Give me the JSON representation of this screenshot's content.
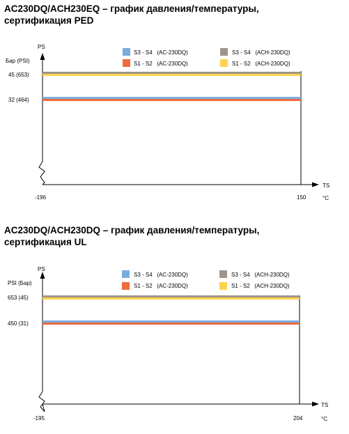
{
  "charts": [
    {
      "title_line1": "AC230DQ/ACH230EQ – график давления/температуры,",
      "title_line2": "сертификация PED",
      "y_axis_title": "PS",
      "y_unit_label": "Бар (PSI)",
      "x_axis_title": "TS",
      "x_unit_label": "°C",
      "x_min_label": "-196",
      "x_max_label": "150",
      "legend": [
        {
          "label": "S3 - S4   (AC-230DQ)",
          "color": "#7aaddf"
        },
        {
          "label": "S1 - S2   (AC-230DQ)",
          "color": "#ef6a3e"
        },
        {
          "label": "S3 - S4   (ACH-230DQ)",
          "color": "#9e948b"
        },
        {
          "label": "S1 - S2   (ACH-230DQ)",
          "color": "#fcd34e"
        }
      ]
    },
    {
      "title_line1": "AC230DQ/ACH230DQ – график давления/температуры,",
      "title_line2": "сертификация UL",
      "y_axis_title": "PS",
      "y_unit_label": "PSI (Бар)",
      "x_axis_title": "TS",
      "x_unit_label": "°C",
      "x_min_label": "-195",
      "x_max_label": "204",
      "legend": [
        {
          "label": "S3 - S4   (AC-230DQ)",
          "color": "#7aaddf"
        },
        {
          "label": "S1 - S2   (AC-230DQ)",
          "color": "#ef6a3e"
        },
        {
          "label": "S3 - S4   (ACH-230DQ)",
          "color": "#9e948b"
        },
        {
          "label": "S1 - S2   (ACH-230DQ)",
          "color": "#fcd34e"
        }
      ]
    }
  ],
  "chart_data": [
    {
      "type": "line",
      "title": "AC230DQ/ACH230EQ – график давления/температуры, сертификация PED",
      "xlabel": "TS (°C)",
      "ylabel": "PS Бар (PSI)",
      "xlim": [
        -196,
        150
      ],
      "series": [
        {
          "name": "S3 - S4 (ACH-230DQ)",
          "color": "#9e948b",
          "x": [
            -196,
            150
          ],
          "y": [
            45,
            45
          ],
          "y_label": "45  (653)"
        },
        {
          "name": "S1 - S2 (ACH-230DQ)",
          "color": "#fcd34e",
          "x": [
            -196,
            150
          ],
          "y": [
            45,
            45
          ],
          "y_label": "45  (653)"
        },
        {
          "name": "S3 - S4 (AC-230DQ)",
          "color": "#7aaddf",
          "x": [
            -196,
            150
          ],
          "y": [
            32,
            32
          ],
          "y_label": "32  (464)"
        },
        {
          "name": "S1 - S2 (AC-230DQ)",
          "color": "#ef6a3e",
          "x": [
            -196,
            150
          ],
          "y": [
            32,
            32
          ],
          "y_label": "32  (464)"
        }
      ]
    },
    {
      "type": "line",
      "title": "AC230DQ/ACH230DQ – график давления/температуры, сертификация UL",
      "xlabel": "TS (°C)",
      "ylabel": "PS PSI (Бар)",
      "xlim": [
        -195,
        204
      ],
      "series": [
        {
          "name": "S3 - S4 (ACH-230DQ)",
          "color": "#9e948b",
          "x": [
            -195,
            204
          ],
          "y": [
            653,
            653
          ],
          "y_label": "653 (45)"
        },
        {
          "name": "S1 - S2 (ACH-230DQ)",
          "color": "#fcd34e",
          "x": [
            -195,
            204
          ],
          "y": [
            653,
            653
          ],
          "y_label": "653 (45)"
        },
        {
          "name": "S3 - S4 (AC-230DQ)",
          "color": "#7aaddf",
          "x": [
            -195,
            204
          ],
          "y": [
            450,
            450
          ],
          "y_label": "450 (31)"
        },
        {
          "name": "S1 - S2 (AC-230DQ)",
          "color": "#ef6a3e",
          "x": [
            -195,
            204
          ],
          "y": [
            450,
            450
          ],
          "y_label": "450 (31)"
        }
      ]
    }
  ]
}
